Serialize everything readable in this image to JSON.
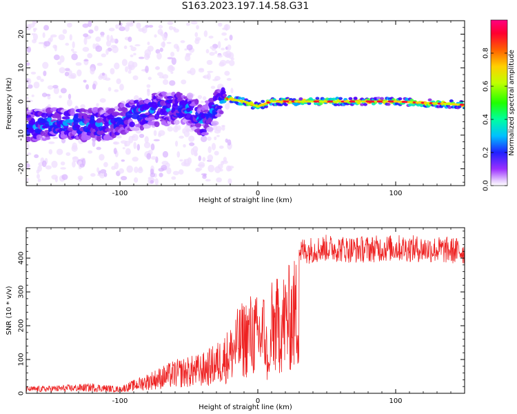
{
  "title": "S163.2023.197.14.58.G31",
  "chart_data": [
    {
      "type": "heatmap",
      "xlabel": "Height of straight line (km)",
      "ylabel": "Frequency (Hz)",
      "xlim": [
        -168,
        150
      ],
      "ylim": [
        -25,
        24
      ],
      "xticks": [
        -100,
        0,
        100
      ],
      "yticks": [
        -20,
        -10,
        0,
        10,
        20
      ],
      "colorbar": {
        "label": "Normalized spectral amplitude",
        "range": [
          0,
          1
        ],
        "ticks": [
          "0.0",
          "0.2",
          "0.4",
          "0.6",
          "0.8"
        ]
      },
      "ridge": {
        "description_points_x": [
          -168,
          -140,
          -110,
          -90,
          -70,
          -50,
          -40,
          -30,
          -25,
          -10,
          0,
          10,
          50,
          100,
          150
        ],
        "frequency_y": [
          -7,
          -6.5,
          -7,
          -4,
          -2,
          -2,
          -6,
          -2,
          1,
          0,
          -1.5,
          0,
          0,
          0,
          -1
        ]
      },
      "grid": false
    },
    {
      "type": "line",
      "xlabel": "Height of straight line (km)",
      "ylabel": "SNR (10 * v/v)",
      "xlim": [
        -168,
        150
      ],
      "ylim": [
        0,
        490
      ],
      "xticks": [
        -100,
        0,
        100
      ],
      "yticks": [
        0,
        100,
        200,
        300,
        400
      ],
      "series": [
        {
          "color": "#ee2222",
          "envelope_x": [
            -168,
            -140,
            -120,
            -100,
            -90,
            -80,
            -70,
            -60,
            -50,
            -40,
            -30,
            -20,
            -15,
            -10,
            -5,
            0,
            5,
            8,
            10,
            13,
            20,
            30,
            50,
            70,
            100,
            130,
            150
          ],
          "envelope_y": [
            20,
            25,
            30,
            20,
            40,
            60,
            80,
            100,
            110,
            120,
            150,
            200,
            250,
            280,
            300,
            290,
            310,
            100,
            330,
            340,
            370,
            420,
            430,
            425,
            430,
            425,
            420
          ]
        }
      ],
      "grid": false
    }
  ]
}
